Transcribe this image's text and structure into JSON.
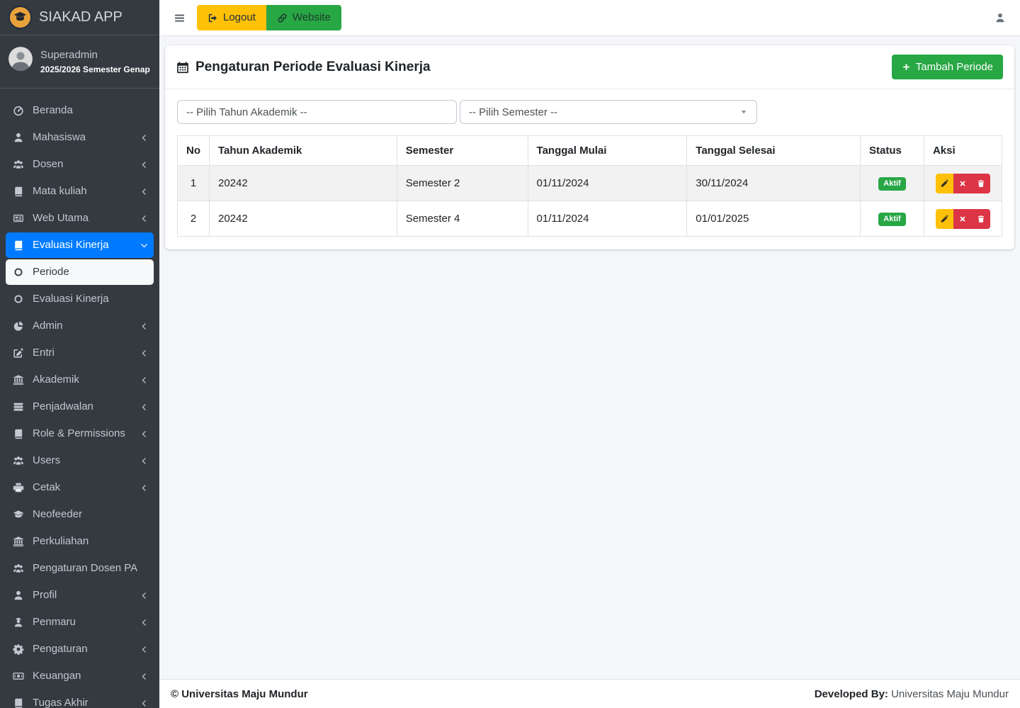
{
  "brand": {
    "app_name": "SIAKAD APP",
    "logo_icon": "graduation-cap-icon"
  },
  "user_panel": {
    "name": "Superadmin",
    "semester": "2025/2026 Semester Genap"
  },
  "topbar": {
    "menu_icon": "bars-icon",
    "logout": "Logout",
    "logout_icon": "sign-out-icon",
    "website": "Website",
    "website_icon": "link-icon",
    "user_icon": "user-icon"
  },
  "sidebar": {
    "items": [
      {
        "label": "Beranda",
        "icon": "tachometer-icon",
        "chevron": "none"
      },
      {
        "label": "Mahasiswa",
        "icon": "user-icon",
        "chevron": "left"
      },
      {
        "label": "Dosen",
        "icon": "users-icon",
        "chevron": "left"
      },
      {
        "label": "Mata kuliah",
        "icon": "book-icon",
        "chevron": "left"
      },
      {
        "label": "Web Utama",
        "icon": "newspaper-icon",
        "chevron": "left"
      },
      {
        "label": "Evaluasi Kinerja",
        "icon": "book-icon",
        "chevron": "down",
        "active": true
      },
      {
        "label": "Periode",
        "icon": "circle-icon",
        "chevron": "none",
        "sub": true,
        "active": true
      },
      {
        "label": "Evaluasi Kinerja",
        "icon": "circle-icon",
        "chevron": "none",
        "sub": true
      },
      {
        "label": "Admin",
        "icon": "chart-pie-icon",
        "chevron": "left"
      },
      {
        "label": "Entri",
        "icon": "edit-icon",
        "chevron": "left"
      },
      {
        "label": "Akademik",
        "icon": "university-icon",
        "chevron": "left"
      },
      {
        "label": "Penjadwalan",
        "icon": "list-icon",
        "chevron": "left"
      },
      {
        "label": "Role & Permissions",
        "icon": "book-icon",
        "chevron": "left"
      },
      {
        "label": "Users",
        "icon": "users-icon",
        "chevron": "left"
      },
      {
        "label": "Cetak",
        "icon": "print-icon",
        "chevron": "left"
      },
      {
        "label": "Neofeeder",
        "icon": "graduation-cap-icon",
        "chevron": "none"
      },
      {
        "label": "Perkuliahan",
        "icon": "university-icon",
        "chevron": "none"
      },
      {
        "label": "Pengaturan Dosen PA",
        "icon": "users-icon",
        "chevron": "none"
      },
      {
        "label": "Profil",
        "icon": "user-icon",
        "chevron": "left"
      },
      {
        "label": "Penmaru",
        "icon": "user-graduate-icon",
        "chevron": "left"
      },
      {
        "label": "Pengaturan",
        "icon": "gear-icon",
        "chevron": "left"
      },
      {
        "label": "Keuangan",
        "icon": "money-icon",
        "chevron": "left"
      },
      {
        "label": "Tugas Akhir",
        "icon": "book-icon",
        "chevron": "left"
      }
    ]
  },
  "page": {
    "title": "Pengaturan Periode Evaluasi Kinerja",
    "title_icon": "calendar-icon",
    "add_button": "Tambah Periode",
    "add_icon": "plus-icon",
    "filters": {
      "tahun_akademik": "-- Pilih Tahun Akademik --",
      "semester": "-- Pilih Semester --"
    },
    "table": {
      "headers": [
        "No",
        "Tahun Akademik",
        "Semester",
        "Tanggal Mulai",
        "Tanggal Selesai",
        "Status",
        "Aksi"
      ],
      "row_action_icons": [
        "pencil-icon",
        "times-icon",
        "trash-icon"
      ],
      "rows": [
        {
          "no": "1",
          "tahun_akademik": "20242",
          "semester": "Semester 2",
          "tanggal_mulai": "01/11/2024",
          "tanggal_selesai": "30/11/2024",
          "status": "Aktif"
        },
        {
          "no": "2",
          "tahun_akademik": "20242",
          "semester": "Semester 4",
          "tanggal_mulai": "01/11/2024",
          "tanggal_selesai": "01/01/2025",
          "status": "Aktif"
        }
      ]
    }
  },
  "footer": {
    "copyright": "© Universitas Maju Mundur",
    "developed_by_label": "Developed By:",
    "developed_by_value": "Universitas Maju Mundur"
  },
  "colors": {
    "sidebar_bg": "#343a40",
    "active_item_blue": "#007bff",
    "success_green": "#28a745",
    "warning_yellow": "#ffc107",
    "danger_red": "#dc3545",
    "logo_orange": "#e9a23b"
  }
}
